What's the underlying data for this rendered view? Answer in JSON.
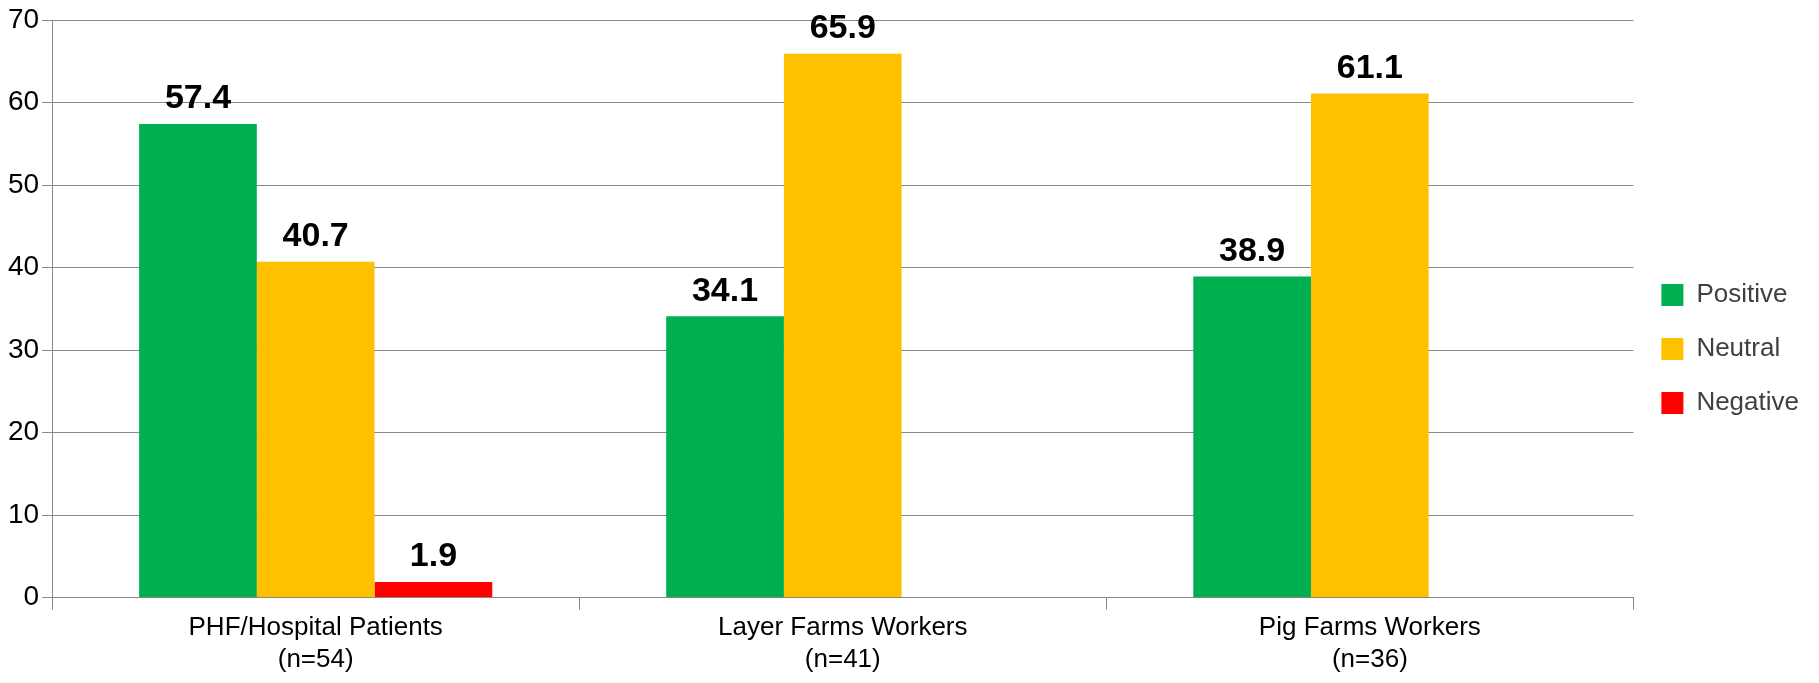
{
  "chart_data": {
    "type": "bar",
    "categories": [
      "PHF/Hospital Patients\n(n=54)",
      "Layer Farms Workers\n(n=41)",
      "Pig Farms Workers\n(n=36)"
    ],
    "series": [
      {
        "name": "Positive",
        "color": "#00b050",
        "values": [
          57.4,
          34.1,
          38.9
        ],
        "value_labels": [
          "57.4",
          "34.1",
          "38.9"
        ]
      },
      {
        "name": "Neutral",
        "color": "#ffc000",
        "values": [
          40.7,
          65.9,
          61.1
        ],
        "value_labels": [
          "40.7",
          "65.9",
          "61.1"
        ]
      },
      {
        "name": "Negative",
        "color": "#ff0000",
        "values": [
          1.9,
          null,
          null
        ],
        "value_labels": [
          "1.9",
          null,
          null
        ]
      }
    ],
    "ylim": [
      0,
      70
    ],
    "yticks": [
      0,
      10,
      20,
      30,
      40,
      50,
      60,
      70
    ],
    "grid": "y",
    "legend": "right"
  }
}
